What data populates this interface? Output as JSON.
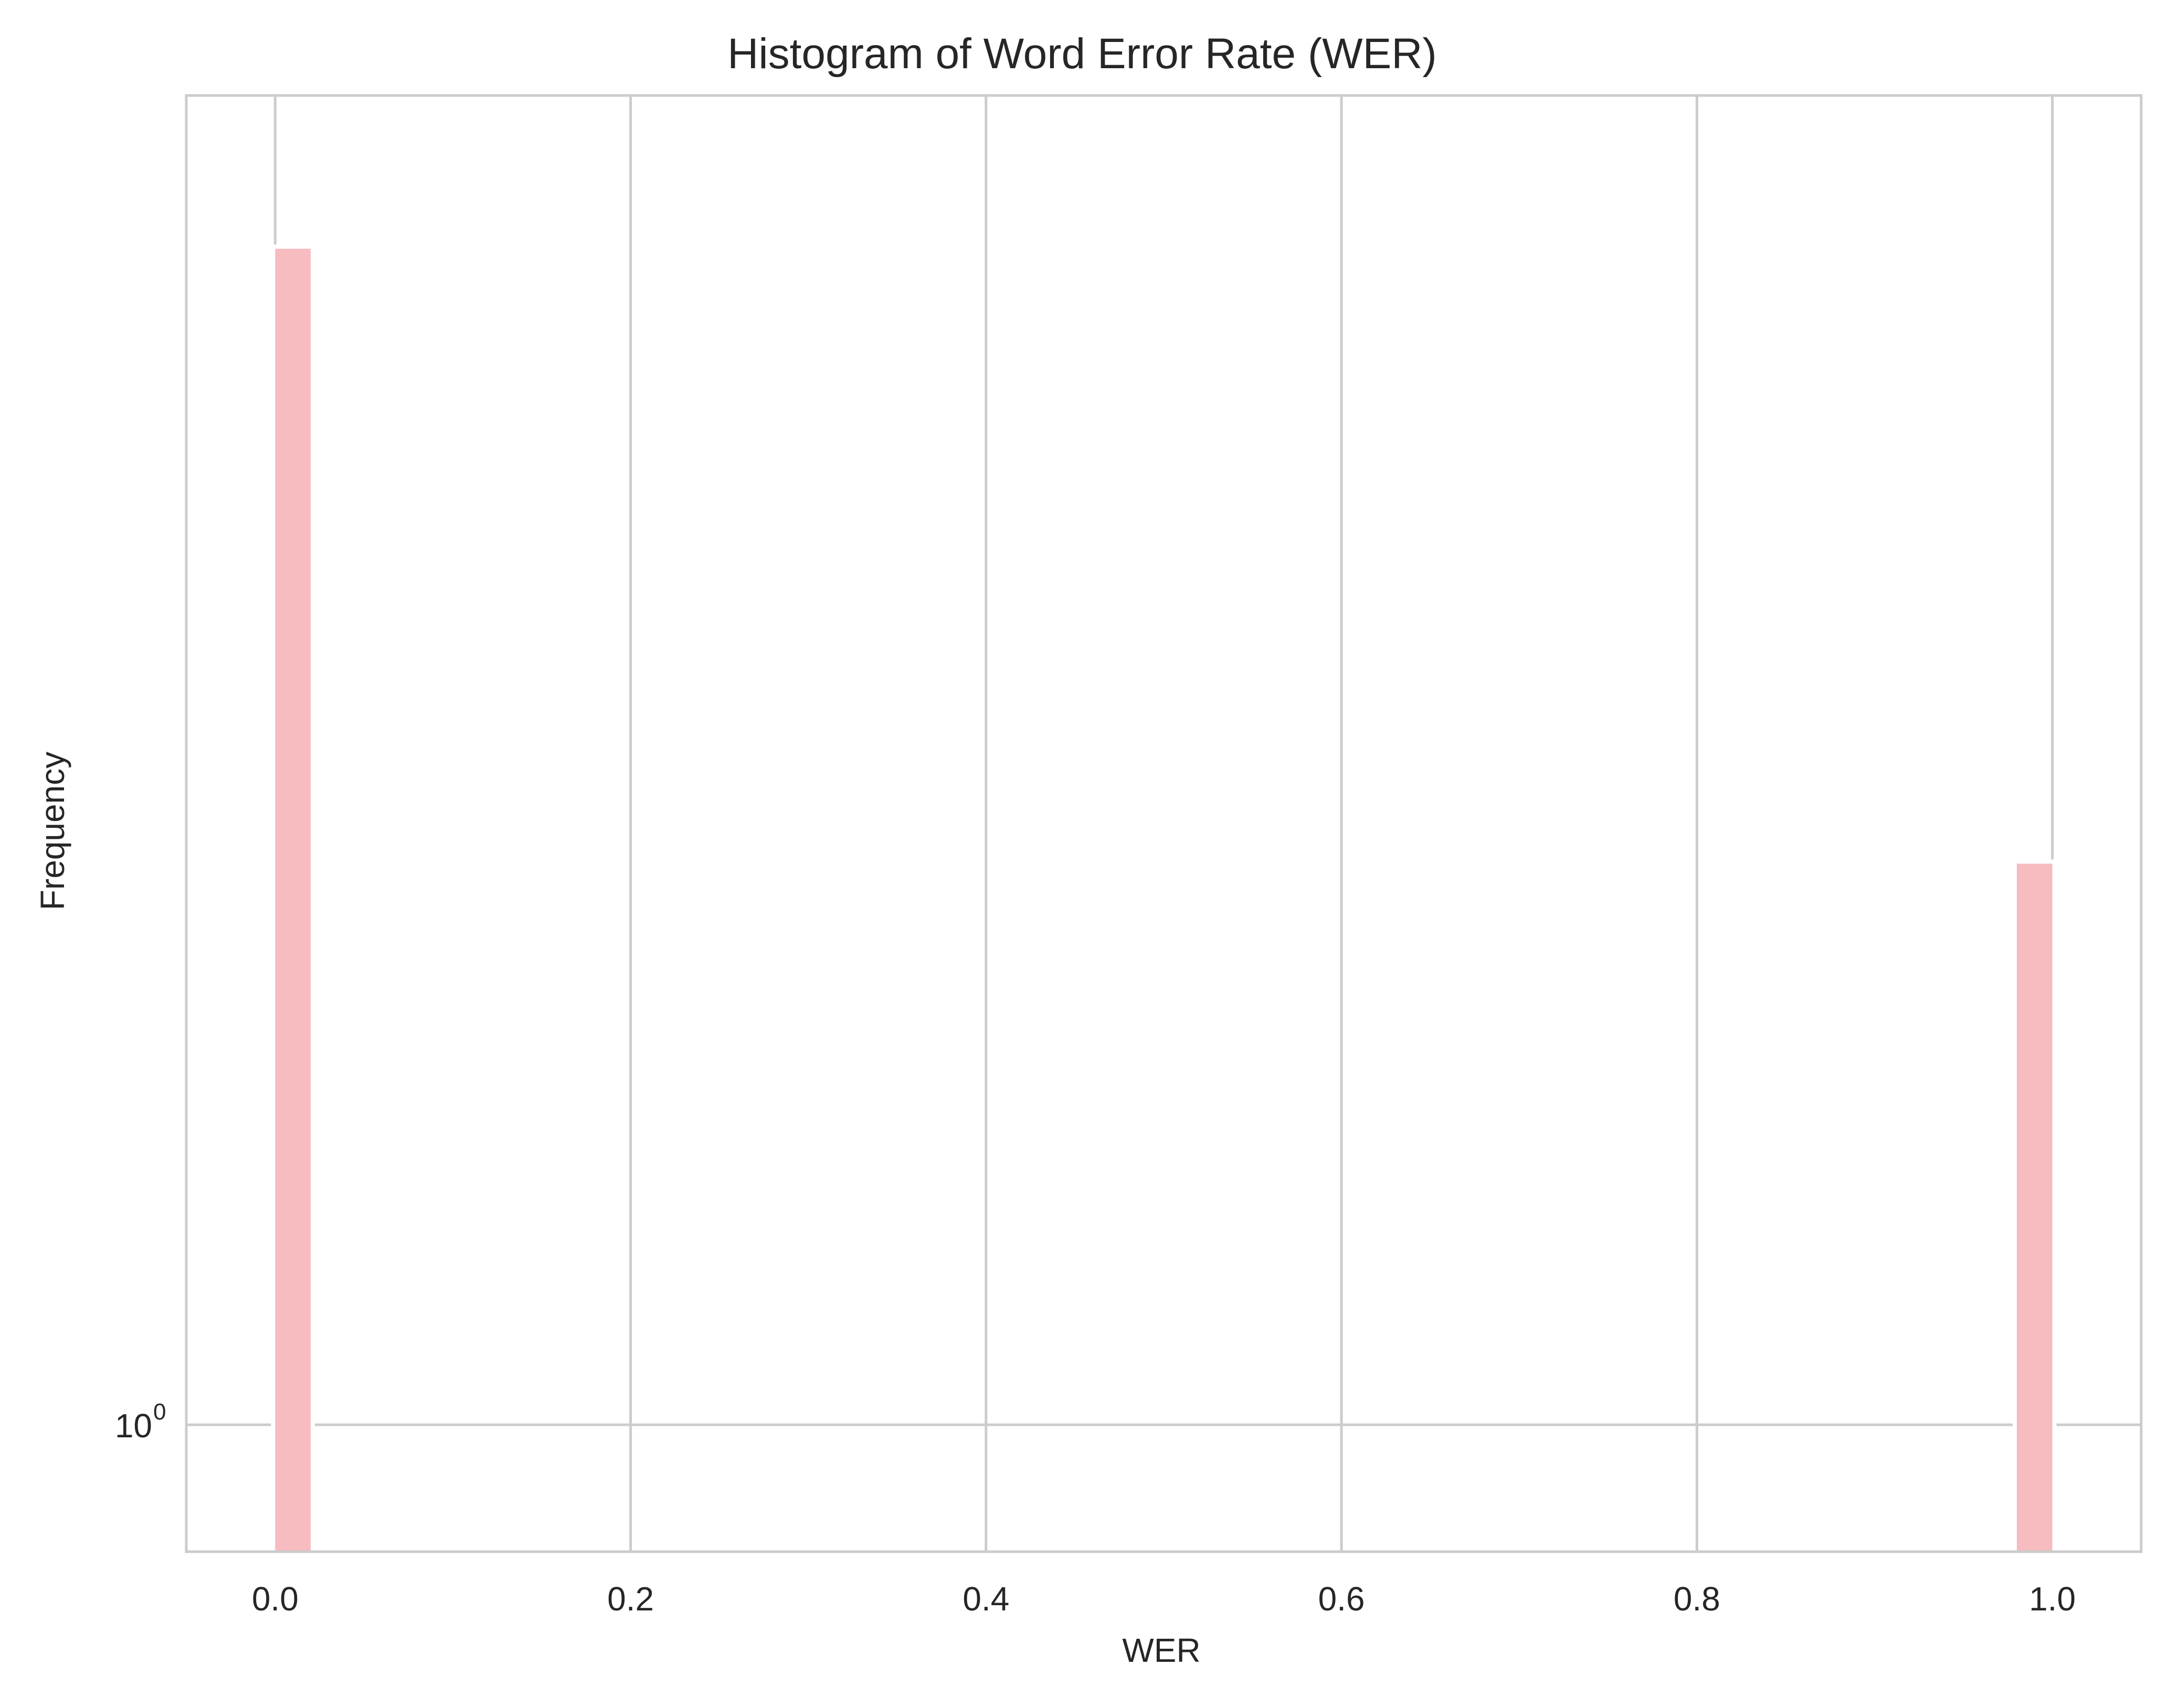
{
  "chart_data": {
    "type": "bar",
    "title": "Histogram of Word Error Rate (WER)",
    "xlabel": "WER",
    "ylabel": "Frequency",
    "xlim": [
      -0.05,
      1.05
    ],
    "ylim": [
      0.78,
      13.5
    ],
    "yscale": "log",
    "grid": true,
    "bin_width": 0.02,
    "bars_color": "#f7bcc0",
    "bars": [
      {
        "x": 0.0,
        "value": 10
      },
      {
        "x": 0.98,
        "value": 3
      }
    ],
    "x_ticks": [
      {
        "value": 0.0,
        "label": "0.0"
      },
      {
        "value": 0.2,
        "label": "0.2"
      },
      {
        "value": 0.4,
        "label": "0.4"
      },
      {
        "value": 0.6,
        "label": "0.6"
      },
      {
        "value": 0.8,
        "label": "0.8"
      },
      {
        "value": 1.0,
        "label": "1.0"
      }
    ],
    "y_ticks": [
      {
        "value": 1,
        "base": "10",
        "exponent": "0"
      }
    ]
  }
}
